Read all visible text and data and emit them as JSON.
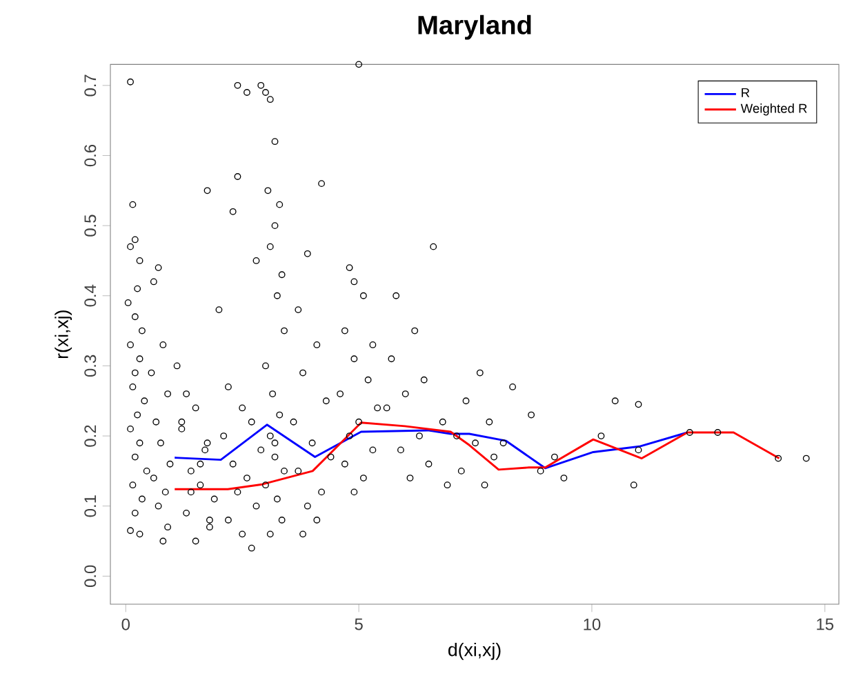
{
  "chart_data": {
    "type": "scatter",
    "title": "Maryland",
    "xlabel": "d(xi,xj)",
    "ylabel": "r(xi,xj)",
    "xlim": [
      -0.33,
      15.3
    ],
    "ylim": [
      -0.04,
      0.73
    ],
    "xticks": [
      0,
      5,
      10,
      15
    ],
    "yticks": [
      {
        "value": 0,
        "label": "0.0"
      },
      0.1,
      0.2,
      0.3,
      0.4,
      0.5,
      0.6,
      0.7
    ],
    "grid": false,
    "legend": "top right",
    "series": [
      {
        "marker": "circle",
        "color": "#000000",
        "x": [
          0.1,
          0.15,
          0.2,
          0.1,
          0.3,
          0.25,
          0.05,
          0.2,
          0.35,
          0.1,
          0.3,
          0.2,
          0.15,
          0.4,
          0.25,
          0.1,
          0.3,
          0.2,
          0.45,
          0.15,
          0.35,
          0.2,
          0.1,
          0.3,
          0.6,
          0.7,
          0.8,
          0.55,
          0.9,
          0.65,
          0.75,
          0.95,
          0.6,
          0.85,
          0.7,
          0.9,
          0.8,
          1.1,
          1.3,
          1.5,
          1.2,
          1.7,
          1.4,
          1.6,
          1.9,
          1.3,
          1.8,
          1.5,
          1.2,
          1.75,
          1.6,
          1.4,
          1.8,
          1.75,
          2.4,
          2.4,
          2.6,
          2.3,
          2.8,
          2.0,
          2.2,
          2.5,
          2.7,
          2.1,
          2.9,
          2.3,
          2.6,
          2.4,
          2.8,
          2.2,
          2.5,
          2.7,
          2.9,
          3.0,
          3.1,
          3.2,
          3.05,
          3.3,
          3.2,
          3.1,
          3.35,
          3.25,
          3.4,
          3.0,
          3.15,
          3.3,
          3.1,
          3.2,
          3.4,
          3.0,
          3.25,
          3.35,
          3.1,
          3.2,
          4.2,
          3.9,
          3.7,
          4.1,
          3.8,
          4.3,
          3.6,
          4.0,
          4.4,
          3.7,
          4.2,
          3.9,
          4.1,
          3.8,
          5.0,
          4.8,
          4.9,
          5.1,
          4.7,
          5.3,
          4.9,
          5.2,
          4.6,
          5.4,
          5.0,
          4.8,
          5.3,
          4.7,
          5.1,
          4.9,
          6.6,
          5.8,
          6.2,
          5.7,
          6.4,
          6.0,
          5.6,
          6.8,
          6.3,
          5.9,
          6.5,
          6.1,
          6.9,
          7.6,
          7.3,
          7.8,
          7.1,
          7.5,
          7.9,
          7.2,
          7.7,
          8.3,
          8.7,
          8.1,
          9.2,
          8.9,
          9.4,
          10.5,
          11.0,
          10.9,
          10.2,
          11.0,
          12.1,
          12.7,
          14.0,
          14.6
        ],
        "values": [
          0.705,
          0.53,
          0.48,
          0.47,
          0.45,
          0.41,
          0.39,
          0.37,
          0.35,
          0.33,
          0.31,
          0.29,
          0.27,
          0.25,
          0.23,
          0.21,
          0.19,
          0.17,
          0.15,
          0.13,
          0.11,
          0.09,
          0.065,
          0.06,
          0.42,
          0.44,
          0.33,
          0.29,
          0.26,
          0.22,
          0.19,
          0.16,
          0.14,
          0.12,
          0.1,
          0.07,
          0.05,
          0.3,
          0.26,
          0.24,
          0.21,
          0.18,
          0.15,
          0.13,
          0.11,
          0.09,
          0.07,
          0.05,
          0.22,
          0.19,
          0.16,
          0.12,
          0.08,
          0.55,
          0.57,
          0.7,
          0.69,
          0.52,
          0.45,
          0.38,
          0.27,
          0.24,
          0.22,
          0.2,
          0.18,
          0.16,
          0.14,
          0.12,
          0.1,
          0.08,
          0.06,
          0.04,
          0.7,
          0.69,
          0.68,
          0.62,
          0.55,
          0.53,
          0.5,
          0.47,
          0.43,
          0.4,
          0.35,
          0.3,
          0.26,
          0.23,
          0.2,
          0.17,
          0.15,
          0.13,
          0.11,
          0.08,
          0.06,
          0.19,
          0.56,
          0.46,
          0.38,
          0.33,
          0.29,
          0.25,
          0.22,
          0.19,
          0.17,
          0.15,
          0.12,
          0.1,
          0.08,
          0.06,
          0.73,
          0.44,
          0.42,
          0.4,
          0.35,
          0.33,
          0.31,
          0.28,
          0.26,
          0.24,
          0.22,
          0.2,
          0.18,
          0.16,
          0.14,
          0.12,
          0.47,
          0.4,
          0.35,
          0.31,
          0.28,
          0.26,
          0.24,
          0.22,
          0.2,
          0.18,
          0.16,
          0.14,
          0.13,
          0.29,
          0.25,
          0.22,
          0.2,
          0.19,
          0.17,
          0.15,
          0.13,
          0.27,
          0.23,
          0.19,
          0.17,
          0.15,
          0.14,
          0.25,
          0.245,
          0.13,
          0.2,
          0.18,
          0.205,
          0.205,
          0.168,
          0.168
        ]
      },
      {
        "type": "line",
        "marker": "none",
        "name": "R",
        "color": "#0000ff",
        "x": [
          1.05,
          2.04,
          3.03,
          4.06,
          5.05,
          6.48,
          6.97,
          7.37,
          8.16,
          9.0,
          10.03,
          11.02,
          12.05
        ],
        "values": [
          0.169,
          0.166,
          0.216,
          0.17,
          0.206,
          0.208,
          0.203,
          0.203,
          0.193,
          0.154,
          0.177,
          0.185,
          0.205
        ]
      },
      {
        "type": "line",
        "marker": "none",
        "name": "Weighted R",
        "color": "#ff0000",
        "x": [
          1.05,
          2.19,
          2.93,
          4.01,
          5.05,
          5.99,
          6.97,
          7.37,
          8.0,
          8.65,
          9.0,
          10.03,
          11.07,
          12.05,
          13.04,
          14.02
        ],
        "values": [
          0.124,
          0.124,
          0.131,
          0.15,
          0.219,
          0.214,
          0.206,
          0.187,
          0.152,
          0.155,
          0.155,
          0.195,
          0.168,
          0.205,
          0.205,
          0.168
        ]
      }
    ]
  }
}
